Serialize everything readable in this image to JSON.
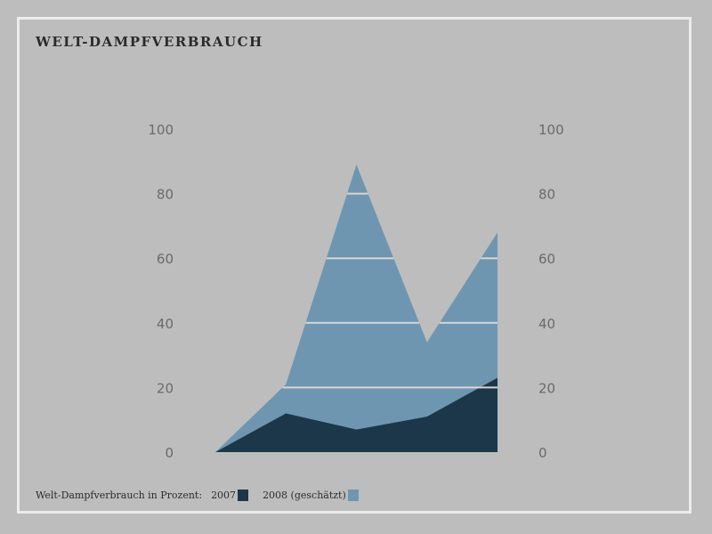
{
  "chart_data": {
    "type": "area",
    "title": "WELT-DAMPFVERBRAUCH",
    "legend": {
      "prefix": "Welt-Dampfverbrauch in Prozent:",
      "placement": "bottom-left"
    },
    "x": [
      0,
      1,
      2,
      3,
      4
    ],
    "ylim": [
      0,
      100
    ],
    "yticks_left": [
      "0",
      "20",
      "40",
      "60",
      "80",
      "100"
    ],
    "yticks_right": [
      "0",
      "20",
      "40",
      "60",
      "80",
      "100"
    ],
    "grid": true,
    "series": [
      {
        "name": "2008 (geschätzt)",
        "values": [
          0,
          21,
          89,
          34,
          68
        ],
        "color": "#6f96b0"
      },
      {
        "name": "2007",
        "values": [
          0,
          12,
          7,
          11,
          23
        ],
        "color": "#1c374a"
      }
    ],
    "colors": {
      "background": "#bdbdbd",
      "frame": "#ececec",
      "gridline": "#d6d6d6",
      "tick_text": "#6a6a6a"
    }
  }
}
